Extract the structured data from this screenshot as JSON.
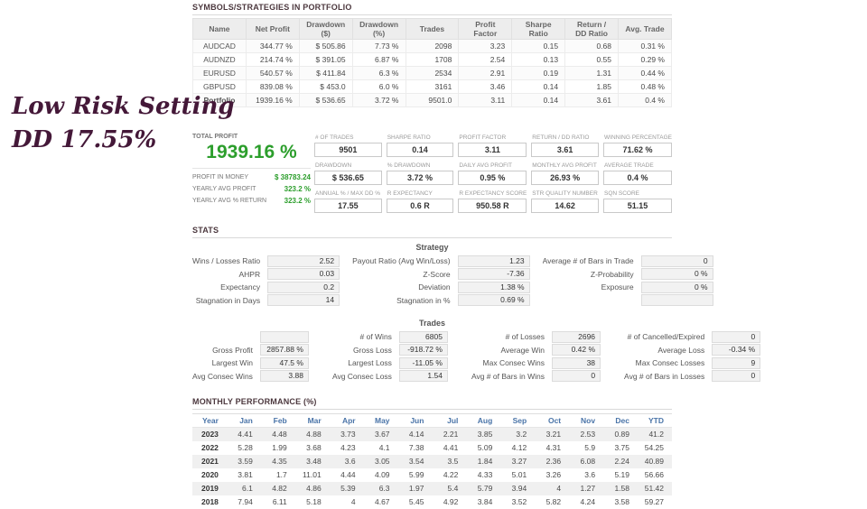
{
  "annotation": {
    "line1": "Low Risk Setting",
    "line2": "DD 17.55%"
  },
  "colors": {
    "profit_green": "#2c9e2c",
    "section_title": "#4c383e",
    "monthly_header_blue": "#4a74a8",
    "annotation_plum": "#441838"
  },
  "portfolio": {
    "title": "SYMBOLS/STRATEGIES IN PORTFOLIO",
    "columns": [
      "Name",
      "Net Profit",
      "Drawdown ($)",
      "Drawdown (%)",
      "Trades",
      "Profit Factor",
      "Sharpe Ratio",
      "Return / DD Ratio",
      "Avg. Trade"
    ],
    "rows": [
      {
        "name": "AUDCAD",
        "values": [
          "344.77 %",
          "$ 505.86",
          "7.73 %",
          "2098",
          "3.23",
          "0.15",
          "0.68",
          "0.31 %"
        ]
      },
      {
        "name": "AUDNZD",
        "values": [
          "214.74 %",
          "$ 391.05",
          "6.87 %",
          "1708",
          "2.54",
          "0.13",
          "0.55",
          "0.29 %"
        ]
      },
      {
        "name": "EURUSD",
        "values": [
          "540.57 %",
          "$ 411.84",
          "6.3 %",
          "2534",
          "2.91",
          "0.19",
          "1.31",
          "0.44 %"
        ]
      },
      {
        "name": "GBPUSD",
        "values": [
          "839.08 %",
          "$ 453.0",
          "6.0 %",
          "3161",
          "3.46",
          "0.14",
          "1.85",
          "0.48 %"
        ]
      },
      {
        "name": "Portfolio",
        "values": [
          "1939.16 %",
          "$ 536.65",
          "3.72 %",
          "9501.0",
          "3.11",
          "0.14",
          "3.61",
          "0.4 %"
        ]
      }
    ]
  },
  "summary": {
    "total_profit_label": "TOTAL PROFIT",
    "total_profit_value": "1939.16 %",
    "detail_rows": [
      {
        "label": "PROFIT IN MONEY",
        "value": "$ 38783.24"
      },
      {
        "label": "YEARLY AVG PROFIT",
        "value": "323.2 %"
      },
      {
        "label": "YEARLY AVG % RETURN",
        "value": "323.2 %"
      }
    ],
    "boxes": [
      {
        "label": "# OF TRADES",
        "value": "9501"
      },
      {
        "label": "SHARPE RATIO",
        "value": "0.14"
      },
      {
        "label": "PROFIT FACTOR",
        "value": "3.11"
      },
      {
        "label": "RETURN / DD RATIO",
        "value": "3.61"
      },
      {
        "label": "WINNING PERCENTAGE",
        "value": "71.62 %"
      },
      {
        "label": "DRAWDOWN",
        "value": "$ 536.65"
      },
      {
        "label": "% DRAWDOWN",
        "value": "3.72 %"
      },
      {
        "label": "DAILY AVG PROFIT",
        "value": "0.95 %"
      },
      {
        "label": "MONTHLY AVG PROFIT",
        "value": "26.93 %"
      },
      {
        "label": "AVERAGE TRADE",
        "value": "0.4 %"
      },
      {
        "label": "ANNUAL % / MAX DD %",
        "value": "17.55"
      },
      {
        "label": "R EXPECTANCY",
        "value": "0.6 R"
      },
      {
        "label": "R EXPECTANCY SCORE",
        "value": "950.58 R"
      },
      {
        "label": "STR QUALITY NUMBER",
        "value": "14.62"
      },
      {
        "label": "SQN SCORE",
        "value": "51.15"
      }
    ]
  },
  "stats": {
    "title": "STATS",
    "strategy_title": "Strategy",
    "strategy_rows": [
      [
        {
          "label": "Wins / Losses Ratio",
          "value": "2.52"
        },
        {
          "label": "Payout Ratio (Avg Win/Loss)",
          "value": "1.23"
        },
        {
          "label": "Average # of Bars in Trade",
          "value": "0"
        }
      ],
      [
        {
          "label": "AHPR",
          "value": "0.03"
        },
        {
          "label": "Z-Score",
          "value": "-7.36"
        },
        {
          "label": "Z-Probability",
          "value": "0 %"
        }
      ],
      [
        {
          "label": "Expectancy",
          "value": "0.2"
        },
        {
          "label": "Deviation",
          "value": "1.38 %"
        },
        {
          "label": "Exposure",
          "value": "0 %"
        }
      ],
      [
        {
          "label": "Stagnation in Days",
          "value": "14"
        },
        {
          "label": "Stagnation in %",
          "value": "0.69 %"
        },
        {
          "label": "",
          "value": ""
        }
      ]
    ],
    "trades_title": "Trades",
    "trades_rows": [
      [
        {
          "label": "",
          "value": ""
        },
        {
          "label": "# of Wins",
          "value": "6805"
        },
        {
          "label": "# of Losses",
          "value": "2696"
        },
        {
          "label": "# of Cancelled/Expired",
          "value": "0"
        }
      ],
      [
        {
          "label": "Gross Profit",
          "value": "2857.88 %"
        },
        {
          "label": "Gross Loss",
          "value": "-918.72 %"
        },
        {
          "label": "Average Win",
          "value": "0.42 %"
        },
        {
          "label": "Average Loss",
          "value": "-0.34 %"
        }
      ],
      [
        {
          "label": "Largest Win",
          "value": "47.5 %"
        },
        {
          "label": "Largest Loss",
          "value": "-11.05 %"
        },
        {
          "label": "Max Consec Wins",
          "value": "38"
        },
        {
          "label": "Max Consec Losses",
          "value": "9"
        }
      ],
      [
        {
          "label": "Avg Consec Wins",
          "value": "3.88"
        },
        {
          "label": "Avg Consec Loss",
          "value": "1.54"
        },
        {
          "label": "Avg # of Bars in Wins",
          "value": "0"
        },
        {
          "label": "Avg # of Bars in Losses",
          "value": "0"
        }
      ]
    ]
  },
  "monthly": {
    "title": "MONTHLY PERFORMANCE (%)",
    "columns": [
      "Year",
      "Jan",
      "Feb",
      "Mar",
      "Apr",
      "May",
      "Jun",
      "Jul",
      "Aug",
      "Sep",
      "Oct",
      "Nov",
      "Dec",
      "YTD"
    ],
    "rows": [
      {
        "year": "2023",
        "values": [
          "4.41",
          "4.48",
          "4.88",
          "3.73",
          "3.67",
          "4.14",
          "2.21",
          "3.85",
          "3.2",
          "3.21",
          "2.53",
          "0.89",
          "41.2"
        ]
      },
      {
        "year": "2022",
        "values": [
          "5.28",
          "1.99",
          "3.68",
          "4.23",
          "4.1",
          "7.38",
          "4.41",
          "5.09",
          "4.12",
          "4.31",
          "5.9",
          "3.75",
          "54.25"
        ]
      },
      {
        "year": "2021",
        "values": [
          "3.59",
          "4.35",
          "3.48",
          "3.6",
          "3.05",
          "3.54",
          "3.5",
          "1.84",
          "3.27",
          "2.36",
          "6.08",
          "2.24",
          "40.89"
        ]
      },
      {
        "year": "2020",
        "values": [
          "3.81",
          "1.7",
          "11.01",
          "4.44",
          "4.09",
          "5.99",
          "4.22",
          "4.33",
          "5.01",
          "3.26",
          "3.6",
          "5.19",
          "56.66"
        ]
      },
      {
        "year": "2019",
        "values": [
          "6.1",
          "4.82",
          "4.86",
          "5.39",
          "6.3",
          "1.97",
          "5.4",
          "5.79",
          "3.94",
          "4",
          "1.27",
          "1.58",
          "51.42"
        ]
      },
      {
        "year": "2018",
        "values": [
          "7.94",
          "6.11",
          "5.18",
          "4",
          "4.67",
          "5.45",
          "4.92",
          "3.84",
          "3.52",
          "5.82",
          "4.24",
          "3.58",
          "59.27"
        ]
      }
    ]
  }
}
